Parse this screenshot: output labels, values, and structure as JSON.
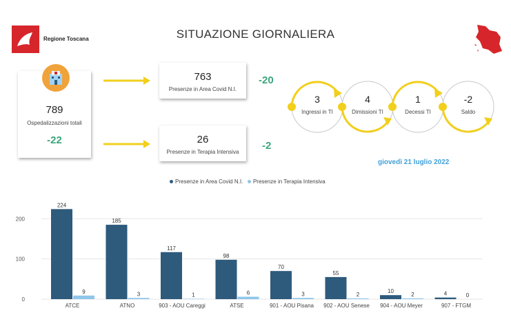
{
  "header": {
    "logo_text": "Regione Toscana",
    "title": "SITUAZIONE GIORNALIERA"
  },
  "kpi": {
    "ospedalizzazioni": {
      "value": "789",
      "label": "Ospedalizzazioni totali",
      "delta": "-22"
    },
    "area_covid": {
      "value": "763",
      "label": "Presenze in Area Covid N.I.",
      "delta": "-20"
    },
    "terapia_intensiva": {
      "value": "26",
      "label": "Presenze in Terapia Intensiva",
      "delta": "-2"
    }
  },
  "flow": [
    {
      "value": "3",
      "label": "Ingressi in TI"
    },
    {
      "value": "4",
      "label": "Dimissioni TI"
    },
    {
      "value": "1",
      "label": "Decessi TI"
    },
    {
      "value": "-2",
      "label": "Saldo"
    }
  ],
  "date": "giovedì 21 luglio 2022",
  "colors": {
    "dark": "#2e5a7c",
    "light": "#8fc6ea",
    "delta": "#3aa57a",
    "accent": "#f2cf1c",
    "red": "#d6262b"
  },
  "chart_data": {
    "type": "bar",
    "categories": [
      "ATCE",
      "ATNO",
      "903 - AOU Careggi",
      "ATSE",
      "901 - AOU Pisana",
      "902 - AOU Senese",
      "904 - AOU Meyer",
      "907 - FTGM"
    ],
    "series": [
      {
        "name": "Presenze in Area Covid N.I.",
        "values": [
          224,
          185,
          117,
          98,
          70,
          55,
          10,
          4
        ]
      },
      {
        "name": "Presenze in Terapia Intensiva",
        "values": [
          9,
          3,
          1,
          6,
          3,
          2,
          2,
          0
        ]
      }
    ],
    "yticks": [
      "0",
      "100",
      "200"
    ],
    "ylim": [
      0,
      240
    ],
    "legend": "top"
  }
}
